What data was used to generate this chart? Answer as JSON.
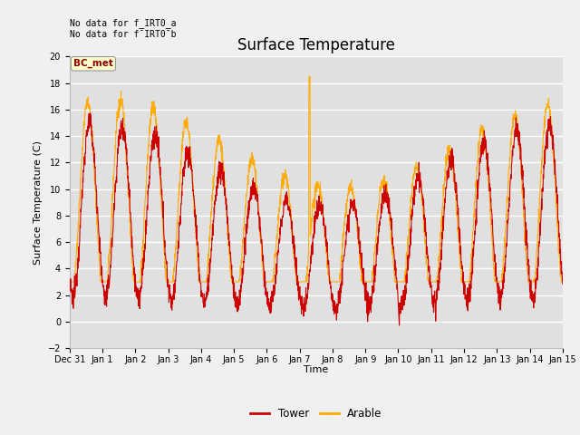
{
  "title": "Surface Temperature",
  "ylabel": "Surface Temperature (C)",
  "xlabel": "Time",
  "annotation_line1": "No data for f_IRT0_a",
  "annotation_line2": "No data for f¯IRT0¯b",
  "bc_met_label": "BC_met",
  "ylim": [
    -2,
    20
  ],
  "legend_labels": [
    "Tower",
    "Arable"
  ],
  "tower_color": "#cc0000",
  "arable_color": "#ffaa00",
  "fig_facecolor": "#f0f0f0",
  "ax_facecolor": "#e0e0e0",
  "xtick_labels": [
    "Dec 31",
    "Jan 1",
    "Jan 2",
    "Jan 3",
    "Jan 4",
    "Jan 5",
    "Jan 6",
    "Jan 7",
    "Jan 8",
    "Jan 9",
    "Jan 10",
    "Jan 11",
    "Jan 12",
    "Jan 13",
    "Jan 14",
    "Jan 15"
  ],
  "ytick_values": [
    -2,
    0,
    2,
    4,
    6,
    8,
    10,
    12,
    14,
    16,
    18,
    20
  ],
  "title_fontsize": 12,
  "axis_fontsize": 8,
  "tick_fontsize": 7
}
